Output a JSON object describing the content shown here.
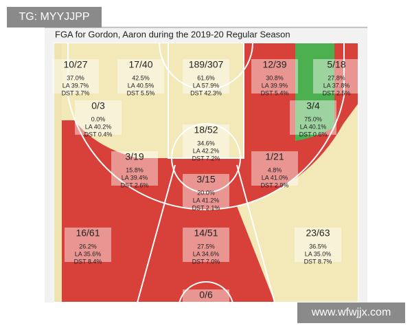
{
  "watermark_top": "TG: MYYJJPP",
  "title": "FGA for Gordon, Aaron during the 2019-20 Regular Season",
  "zones": [
    {
      "made": "10/27",
      "pct": "37.0%",
      "la": "LA 39.7%",
      "dst": "DST 3.7%"
    },
    {
      "made": "17/40",
      "pct": "42.5%",
      "la": "LA 40.5%",
      "dst": "DST 5.5%"
    },
    {
      "made": "189/307",
      "pct": "61.6%",
      "la": "LA 57.9%",
      "dst": "DST 42.3%"
    },
    {
      "made": "12/39",
      "pct": "30.8%",
      "la": "LA 39.9%",
      "dst": "DST 5.4%"
    },
    {
      "made": "5/18",
      "pct": "27.8%",
      "la": "LA 37.8%",
      "dst": "DST 2.5%"
    },
    {
      "made": "0/3",
      "pct": "0.0%",
      "la": "LA 40.2%",
      "dst": "DST 0.4%"
    },
    {
      "made": "18/52",
      "pct": "34.6%",
      "la": "LA 42.2%",
      "dst": "DST 7.2%"
    },
    {
      "made": "3/4",
      "pct": "75.0%",
      "la": "LA 40.1%",
      "dst": "DST 0.6%"
    },
    {
      "made": "3/19",
      "pct": "15.8%",
      "la": "LA 39.4%",
      "dst": "DST 2.6%"
    },
    {
      "made": "1/21",
      "pct": "4.8%",
      "la": "LA 41.0%",
      "dst": "DST 2.9%"
    },
    {
      "made": "3/15",
      "pct": "20.0%",
      "la": "LA 41.2%",
      "dst": "DST 2.1%"
    },
    {
      "made": "16/61",
      "pct": "26.2%",
      "la": "LA 35.6%",
      "dst": "DST 8.4%"
    },
    {
      "made": "14/51",
      "pct": "27.5%",
      "la": "LA 34.6%",
      "dst": "DST 7.0%"
    },
    {
      "made": "23/63",
      "pct": "36.5%",
      "la": "LA 35.0%",
      "dst": "DST 8.7%"
    },
    {
      "made": "0/6"
    }
  ],
  "watermark_bottom": "www.wfwjjx.com"
}
